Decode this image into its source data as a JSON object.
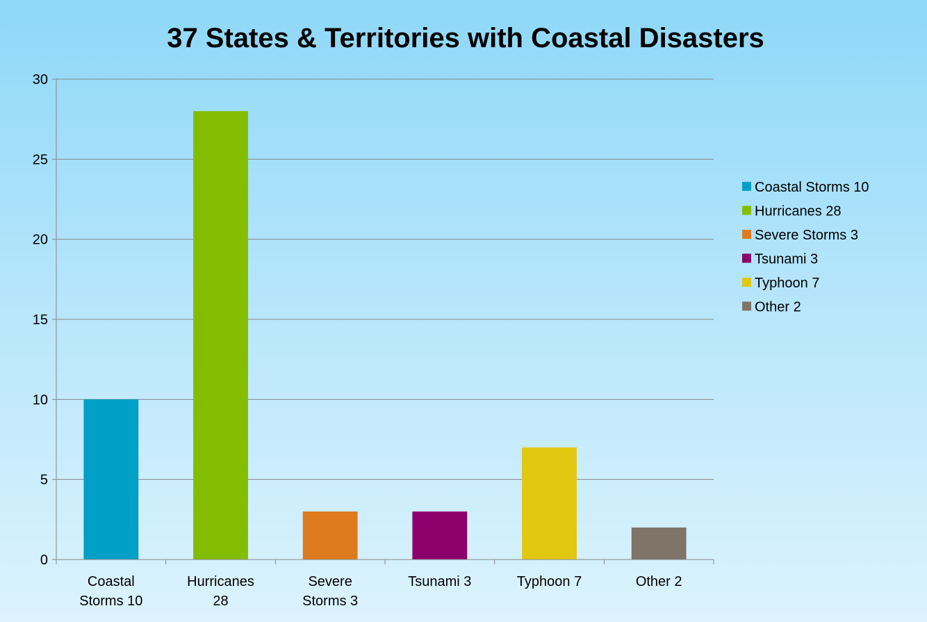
{
  "chart_data": {
    "type": "bar",
    "title": "37 States & Territories with Coastal Disasters",
    "categories": [
      [
        "Coastal",
        "Storms 10"
      ],
      [
        "Hurricanes",
        "28"
      ],
      [
        "Severe",
        "Storms 3"
      ],
      [
        "Tsunami 3"
      ],
      [
        "Typhoon 7"
      ],
      [
        "Other 2"
      ]
    ],
    "series": [
      {
        "name": "Coastal Storms 10",
        "color": "#00a0c6",
        "values": [
          10,
          null,
          null,
          null,
          null,
          null
        ]
      },
      {
        "name": "Hurricanes 28",
        "color": "#84bd00",
        "values": [
          null,
          28,
          null,
          null,
          null,
          null
        ]
      },
      {
        "name": "Severe Storms 3",
        "color": "#de7b1e",
        "values": [
          null,
          null,
          3,
          null,
          null,
          null
        ]
      },
      {
        "name": "Tsunami 3",
        "color": "#8b006b",
        "values": [
          null,
          null,
          null,
          3,
          null,
          null
        ]
      },
      {
        "name": "Typhoon 7",
        "color": "#e1c811",
        "values": [
          null,
          null,
          null,
          null,
          7,
          null
        ]
      },
      {
        "name": "Other 2",
        "color": "#7f7468",
        "values": [
          null,
          null,
          null,
          null,
          null,
          2
        ]
      }
    ],
    "ylim": [
      0,
      30
    ],
    "yticks": [
      0,
      5,
      10,
      15,
      20,
      25,
      30
    ],
    "grid": true,
    "legend": "right"
  }
}
